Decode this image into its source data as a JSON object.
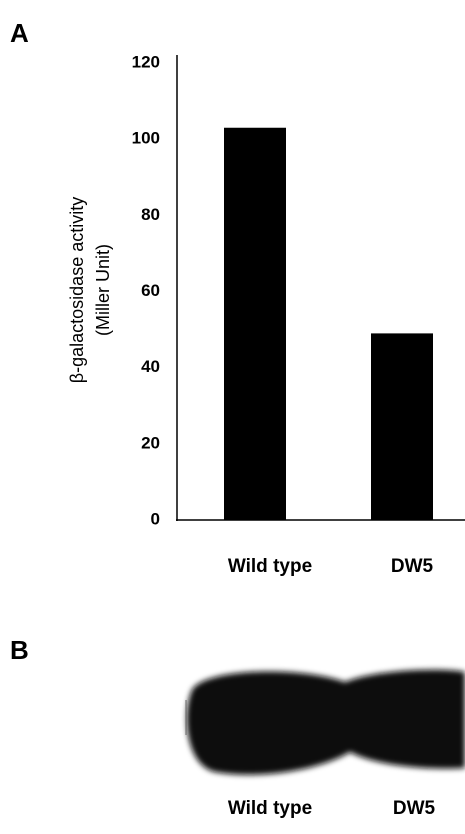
{
  "panels": {
    "a": "A",
    "b": "B"
  },
  "chart_data": {
    "type": "bar",
    "ylabel": [
      "β-galactosidase activity",
      "(Miller Unit)"
    ],
    "categories": [
      "Wild type",
      "DW5"
    ],
    "values": [
      103,
      49
    ],
    "color": "#000000",
    "ylim": [
      0,
      120
    ],
    "yticks": [
      0,
      20,
      40,
      60,
      80,
      100,
      120
    ],
    "grid": false
  },
  "blot": {
    "lanes": [
      "Wild type",
      "DW5"
    ]
  }
}
